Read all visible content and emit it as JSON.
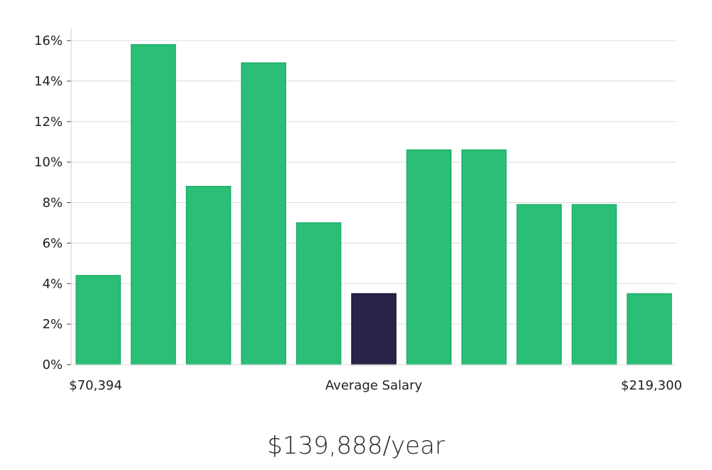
{
  "chart_data": {
    "type": "bar",
    "values": [
      4.4,
      15.8,
      8.8,
      14.9,
      7.0,
      3.5,
      10.6,
      10.6,
      7.9,
      7.9,
      3.5
    ],
    "highlight_index": 5,
    "ylim": [
      0,
      16.6
    ],
    "y_ticks": [
      0,
      2,
      4,
      6,
      8,
      10,
      12,
      14,
      16
    ],
    "y_tick_labels": [
      "0%",
      "2%",
      "4%",
      "6%",
      "8%",
      "10%",
      "12%",
      "14%",
      "16%"
    ],
    "x_labels": {
      "min": "$70,394",
      "center": "Average Salary",
      "max": "$219,300"
    },
    "grid": true,
    "colors": {
      "bar": "#2abe77",
      "bar_edge": "#1fae68",
      "highlight": "#29234a",
      "highlight_edge": "#15122e",
      "grid": "#dcdcdc",
      "axis": "#cfcfcf"
    }
  },
  "salary": {
    "text": "$139,888/year"
  }
}
